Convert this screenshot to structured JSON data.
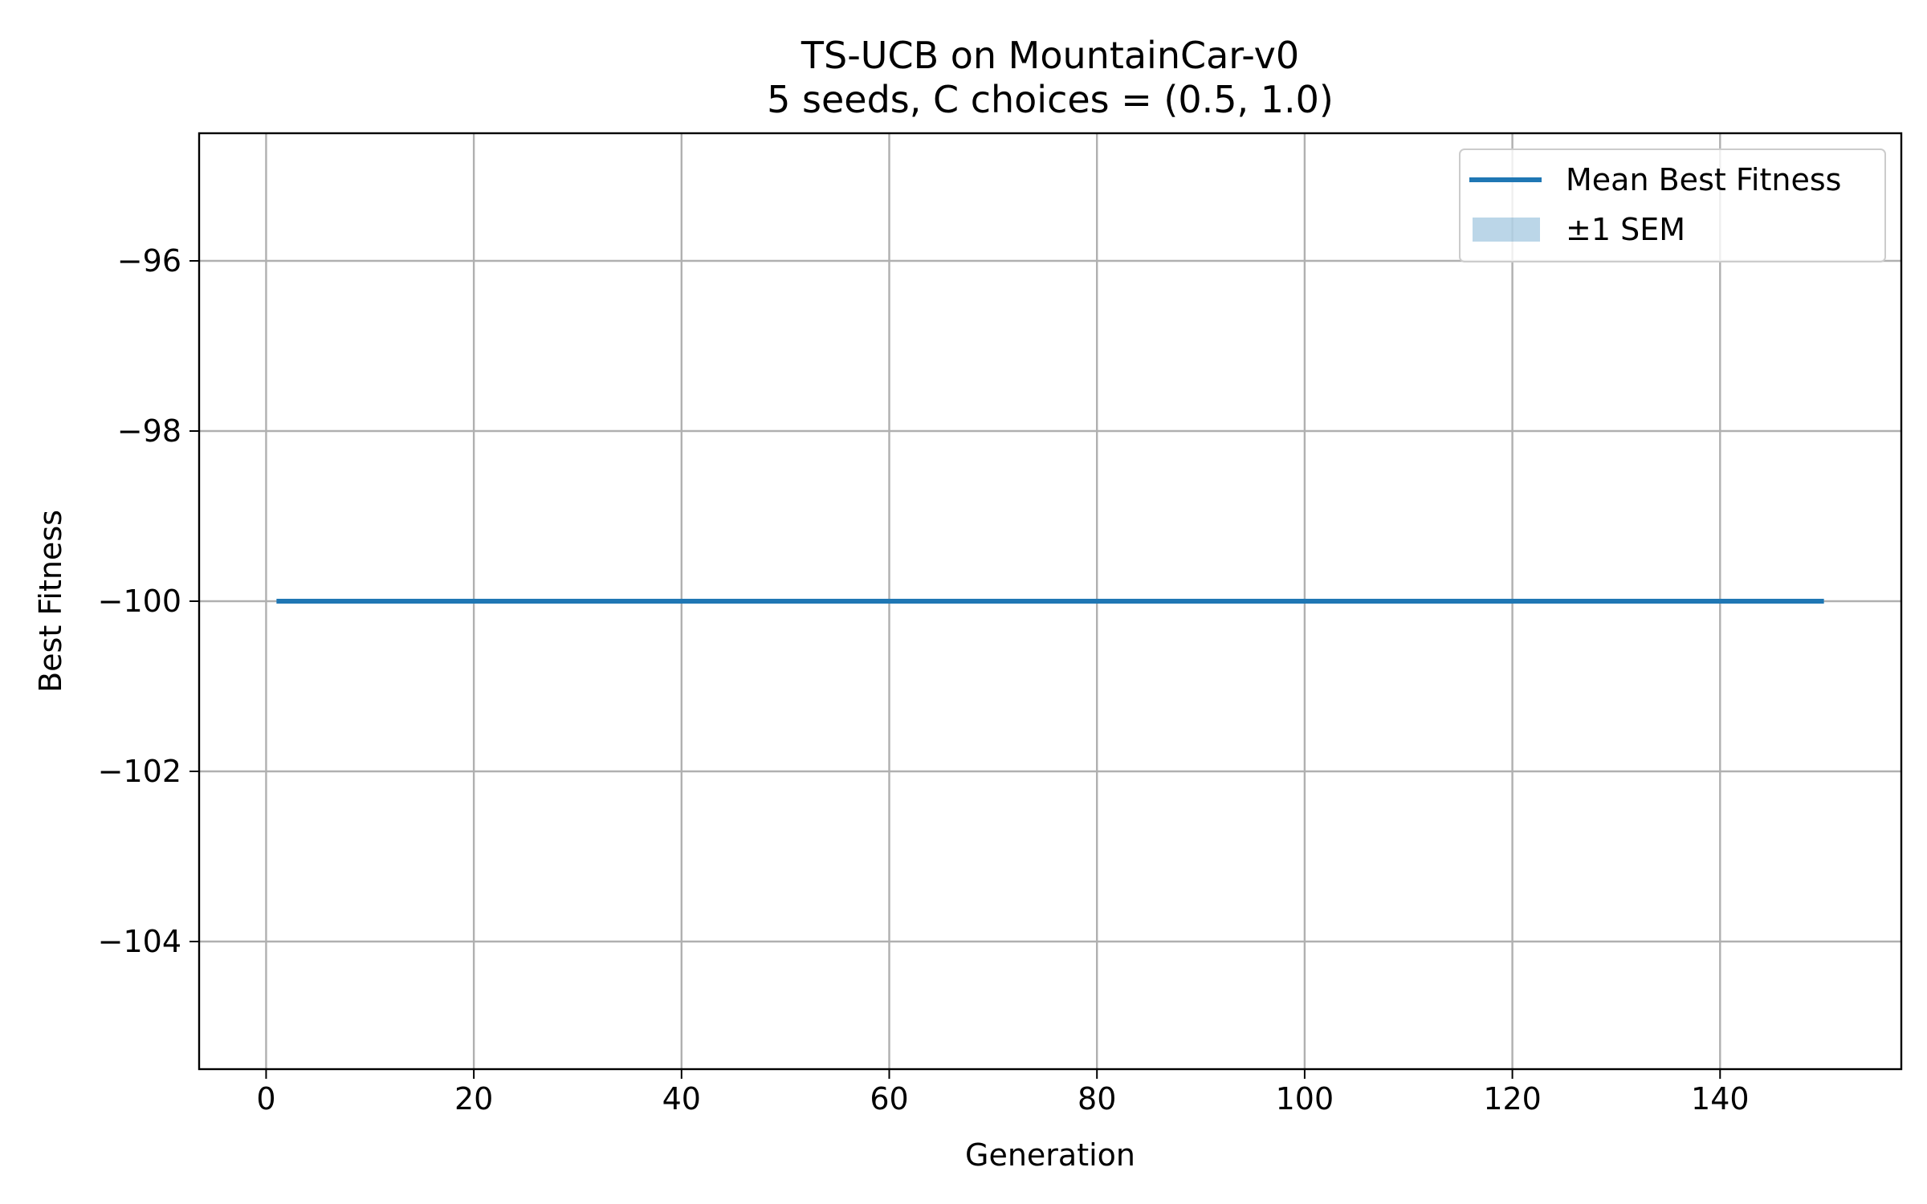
{
  "chart_data": {
    "type": "line",
    "title": "TS-UCB on MountainCar-v0",
    "subtitle": "5 seeds, C choices = (0.5, 1.0)",
    "xlabel": "Generation",
    "ylabel": "Best Fitness",
    "xlim": [
      -6.45,
      157.45
    ],
    "ylim": [
      -105.5,
      -94.5
    ],
    "xticks": [
      0,
      20,
      40,
      60,
      80,
      100,
      120,
      140
    ],
    "yticks": [
      -96,
      -98,
      -100,
      -102,
      -104
    ],
    "xtick_labels": [
      "0",
      "20",
      "40",
      "60",
      "80",
      "100",
      "120",
      "140"
    ],
    "ytick_labels": [
      "−96",
      "−98",
      "−100",
      "−102",
      "−104"
    ],
    "grid": true,
    "legend_position": "top-right",
    "series": [
      {
        "name": "Mean Best Fitness",
        "color": "#1f77b4",
        "x": [
          1,
          150
        ],
        "y": [
          -100,
          -100
        ]
      }
    ],
    "bands": [
      {
        "name": "±1 SEM",
        "color": "#1f77b4",
        "opacity": 0.3,
        "x": [
          1,
          150
        ],
        "lower": [
          -100,
          -100
        ],
        "upper": [
          -100,
          -100
        ]
      }
    ]
  }
}
